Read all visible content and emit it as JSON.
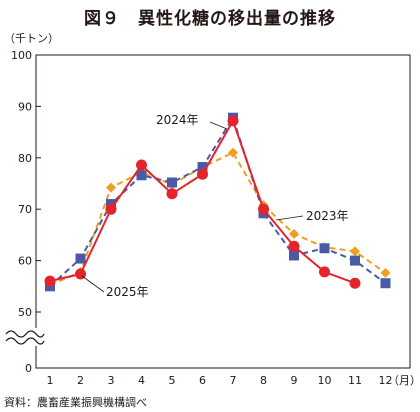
{
  "title": "図９　異性化糖の移出量の推移",
  "source": "資料：農畜産業振興機構調べ",
  "chart_data": {
    "type": "line",
    "title": "図９　異性化糖の移出量の推移",
    "xlabel": "（月）",
    "ylabel": "（千トン）",
    "categories": [
      "1",
      "2",
      "3",
      "4",
      "5",
      "6",
      "7",
      "8",
      "9",
      "10",
      "11",
      "12"
    ],
    "ylim": [
      50,
      100
    ],
    "yticks": [
      "100",
      "90",
      "80",
      "70",
      "60",
      "50",
      "0"
    ],
    "axis_break": true,
    "grid": false,
    "series": [
      {
        "name": "2023年",
        "color": "#f0a020",
        "marker": "diamond",
        "dash": "dashed",
        "values": [
          55.2,
          57.8,
          74.2,
          77.2,
          74.8,
          78.2,
          81.0,
          70.8,
          65.2,
          62.6,
          61.8,
          57.6
        ]
      },
      {
        "name": "2024年",
        "color": "#4b5aa8",
        "marker": "square",
        "dash": "dashed",
        "values": [
          55.0,
          60.4,
          71.0,
          76.6,
          75.2,
          78.2,
          87.8,
          69.2,
          61.0,
          62.4,
          60.0,
          55.6
        ]
      },
      {
        "name": "2025年",
        "color": "#e3242b",
        "marker": "circle",
        "dash": "solid",
        "values": [
          56.0,
          57.4,
          70.0,
          78.6,
          73.0,
          76.8,
          87.2,
          70.0,
          62.8,
          57.8,
          55.6,
          null
        ]
      }
    ]
  }
}
